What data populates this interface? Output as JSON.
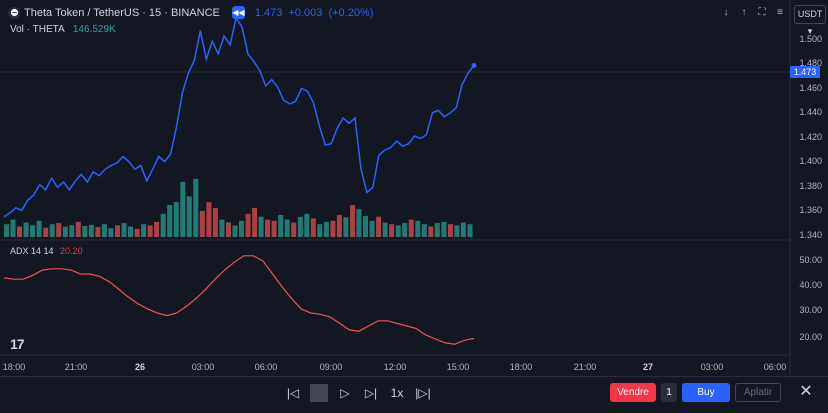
{
  "header": {
    "symbol": "Theta Token / TetherUS · 15 · BINANCE",
    "last": "1.473",
    "change": "+0.003",
    "change_pct": "(+0.20%)",
    "vol_label": "Vol · THETA",
    "vol_value": "146.529K"
  },
  "currency_button": "USDT",
  "adx": {
    "label": "ADX 14 14",
    "value": "20.20"
  },
  "price_axis": [
    "1.500",
    "1.480",
    "1.460",
    "1.440",
    "1.420",
    "1.400",
    "1.380",
    "1.360",
    "1.340"
  ],
  "current_price_tag": "1.473",
  "adx_axis": [
    "50.00",
    "40.00",
    "30.00",
    "20.00"
  ],
  "time_axis": [
    {
      "label": "18:00",
      "bold": false
    },
    {
      "label": "21:00",
      "bold": false
    },
    {
      "label": "26",
      "bold": true
    },
    {
      "label": "03:00",
      "bold": false
    },
    {
      "label": "06:00",
      "bold": false
    },
    {
      "label": "09:00",
      "bold": false
    },
    {
      "label": "12:00",
      "bold": false
    },
    {
      "label": "15:00",
      "bold": false
    },
    {
      "label": "18:00",
      "bold": false
    },
    {
      "label": "21:00",
      "bold": false
    },
    {
      "label": "27",
      "bold": true
    },
    {
      "label": "03:00",
      "bold": false
    },
    {
      "label": "06:00",
      "bold": false
    }
  ],
  "toolbar": {
    "sell_label": "Vendre",
    "qty": "1",
    "buy_label": "Buy",
    "flatten_label": "Aplatir",
    "speed": "1x"
  },
  "colors": {
    "price_line": "#2962ff",
    "up": "#26a69a",
    "down": "#ef5350",
    "adx_line": "#ef5350"
  },
  "chart_data": {
    "type": "line",
    "price_series": [
      1.355,
      1.358,
      1.362,
      1.36,
      1.368,
      1.372,
      1.38,
      1.376,
      1.385,
      1.378,
      1.382,
      1.376,
      1.383,
      1.388,
      1.382,
      1.39,
      1.387,
      1.392,
      1.395,
      1.397,
      1.402,
      1.398,
      1.392,
      1.395,
      1.383,
      1.392,
      1.402,
      1.398,
      1.404,
      1.425,
      1.452,
      1.467,
      1.477,
      1.5,
      1.478,
      1.492,
      1.482,
      1.496,
      1.489,
      1.51,
      1.503,
      1.482,
      1.476,
      1.469,
      1.457,
      1.462,
      1.456,
      1.446,
      1.443,
      1.445,
      1.455,
      1.453,
      1.444,
      1.426,
      1.411,
      1.412,
      1.424,
      1.432,
      1.428,
      1.432,
      1.392,
      1.374,
      1.378,
      1.403,
      1.407,
      1.409,
      1.414,
      1.41,
      1.412,
      1.418,
      1.416,
      1.419,
      1.436,
      1.438,
      1.433,
      1.436,
      1.44,
      1.458,
      1.467,
      1.473
    ],
    "volume": [
      {
        "v": 0.22,
        "up": true
      },
      {
        "v": 0.3,
        "up": true
      },
      {
        "v": 0.18,
        "up": false
      },
      {
        "v": 0.25,
        "up": true
      },
      {
        "v": 0.2,
        "up": true
      },
      {
        "v": 0.28,
        "up": true
      },
      {
        "v": 0.16,
        "up": false
      },
      {
        "v": 0.22,
        "up": true
      },
      {
        "v": 0.24,
        "up": false
      },
      {
        "v": 0.18,
        "up": true
      },
      {
        "v": 0.2,
        "up": true
      },
      {
        "v": 0.26,
        "up": false
      },
      {
        "v": 0.19,
        "up": true
      },
      {
        "v": 0.21,
        "up": true
      },
      {
        "v": 0.17,
        "up": false
      },
      {
        "v": 0.22,
        "up": true
      },
      {
        "v": 0.15,
        "up": true
      },
      {
        "v": 0.2,
        "up": false
      },
      {
        "v": 0.24,
        "up": true
      },
      {
        "v": 0.18,
        "up": true
      },
      {
        "v": 0.14,
        "up": false
      },
      {
        "v": 0.22,
        "up": true
      },
      {
        "v": 0.2,
        "up": false
      },
      {
        "v": 0.26,
        "up": false
      },
      {
        "v": 0.4,
        "up": true
      },
      {
        "v": 0.55,
        "up": true
      },
      {
        "v": 0.6,
        "up": true
      },
      {
        "v": 0.95,
        "up": true
      },
      {
        "v": 0.7,
        "up": true
      },
      {
        "v": 1.0,
        "up": true
      },
      {
        "v": 0.45,
        "up": false
      },
      {
        "v": 0.6,
        "up": false
      },
      {
        "v": 0.5,
        "up": false
      },
      {
        "v": 0.3,
        "up": true
      },
      {
        "v": 0.25,
        "up": false
      },
      {
        "v": 0.2,
        "up": true
      },
      {
        "v": 0.28,
        "up": true
      },
      {
        "v": 0.4,
        "up": false
      },
      {
        "v": 0.5,
        "up": false
      },
      {
        "v": 0.35,
        "up": true
      },
      {
        "v": 0.3,
        "up": false
      },
      {
        "v": 0.28,
        "up": false
      },
      {
        "v": 0.38,
        "up": true
      },
      {
        "v": 0.3,
        "up": true
      },
      {
        "v": 0.25,
        "up": false
      },
      {
        "v": 0.35,
        "up": true
      },
      {
        "v": 0.4,
        "up": true
      },
      {
        "v": 0.32,
        "up": false
      },
      {
        "v": 0.22,
        "up": true
      },
      {
        "v": 0.26,
        "up": true
      },
      {
        "v": 0.28,
        "up": false
      },
      {
        "v": 0.38,
        "up": false
      },
      {
        "v": 0.34,
        "up": true
      },
      {
        "v": 0.55,
        "up": false
      },
      {
        "v": 0.48,
        "up": true
      },
      {
        "v": 0.36,
        "up": true
      },
      {
        "v": 0.28,
        "up": true
      },
      {
        "v": 0.35,
        "up": false
      },
      {
        "v": 0.25,
        "up": true
      },
      {
        "v": 0.22,
        "up": false
      },
      {
        "v": 0.2,
        "up": true
      },
      {
        "v": 0.24,
        "up": true
      },
      {
        "v": 0.3,
        "up": false
      },
      {
        "v": 0.28,
        "up": true
      },
      {
        "v": 0.22,
        "up": true
      },
      {
        "v": 0.18,
        "up": false
      },
      {
        "v": 0.24,
        "up": true
      },
      {
        "v": 0.26,
        "up": true
      },
      {
        "v": 0.22,
        "up": false
      },
      {
        "v": 0.2,
        "up": true
      },
      {
        "v": 0.25,
        "up": true
      },
      {
        "v": 0.22,
        "up": true
      }
    ],
    "adx_series": [
      43.5,
      43,
      43,
      44.5,
      46.5,
      47,
      47,
      46.5,
      45,
      45,
      44,
      42,
      39,
      36,
      33.5,
      31.5,
      30,
      29,
      30,
      32.5,
      35.5,
      39,
      43,
      46.5,
      49.5,
      52,
      52,
      50,
      45,
      40,
      35.5,
      31.5,
      30,
      29.5,
      28.5,
      26,
      23.5,
      23,
      25,
      27,
      27,
      26,
      25,
      24,
      21.5,
      20,
      18.5,
      18,
      19.5,
      20.2
    ],
    "price_ylim": [
      1.34,
      1.51
    ],
    "adx_ylim": [
      15,
      55
    ]
  }
}
